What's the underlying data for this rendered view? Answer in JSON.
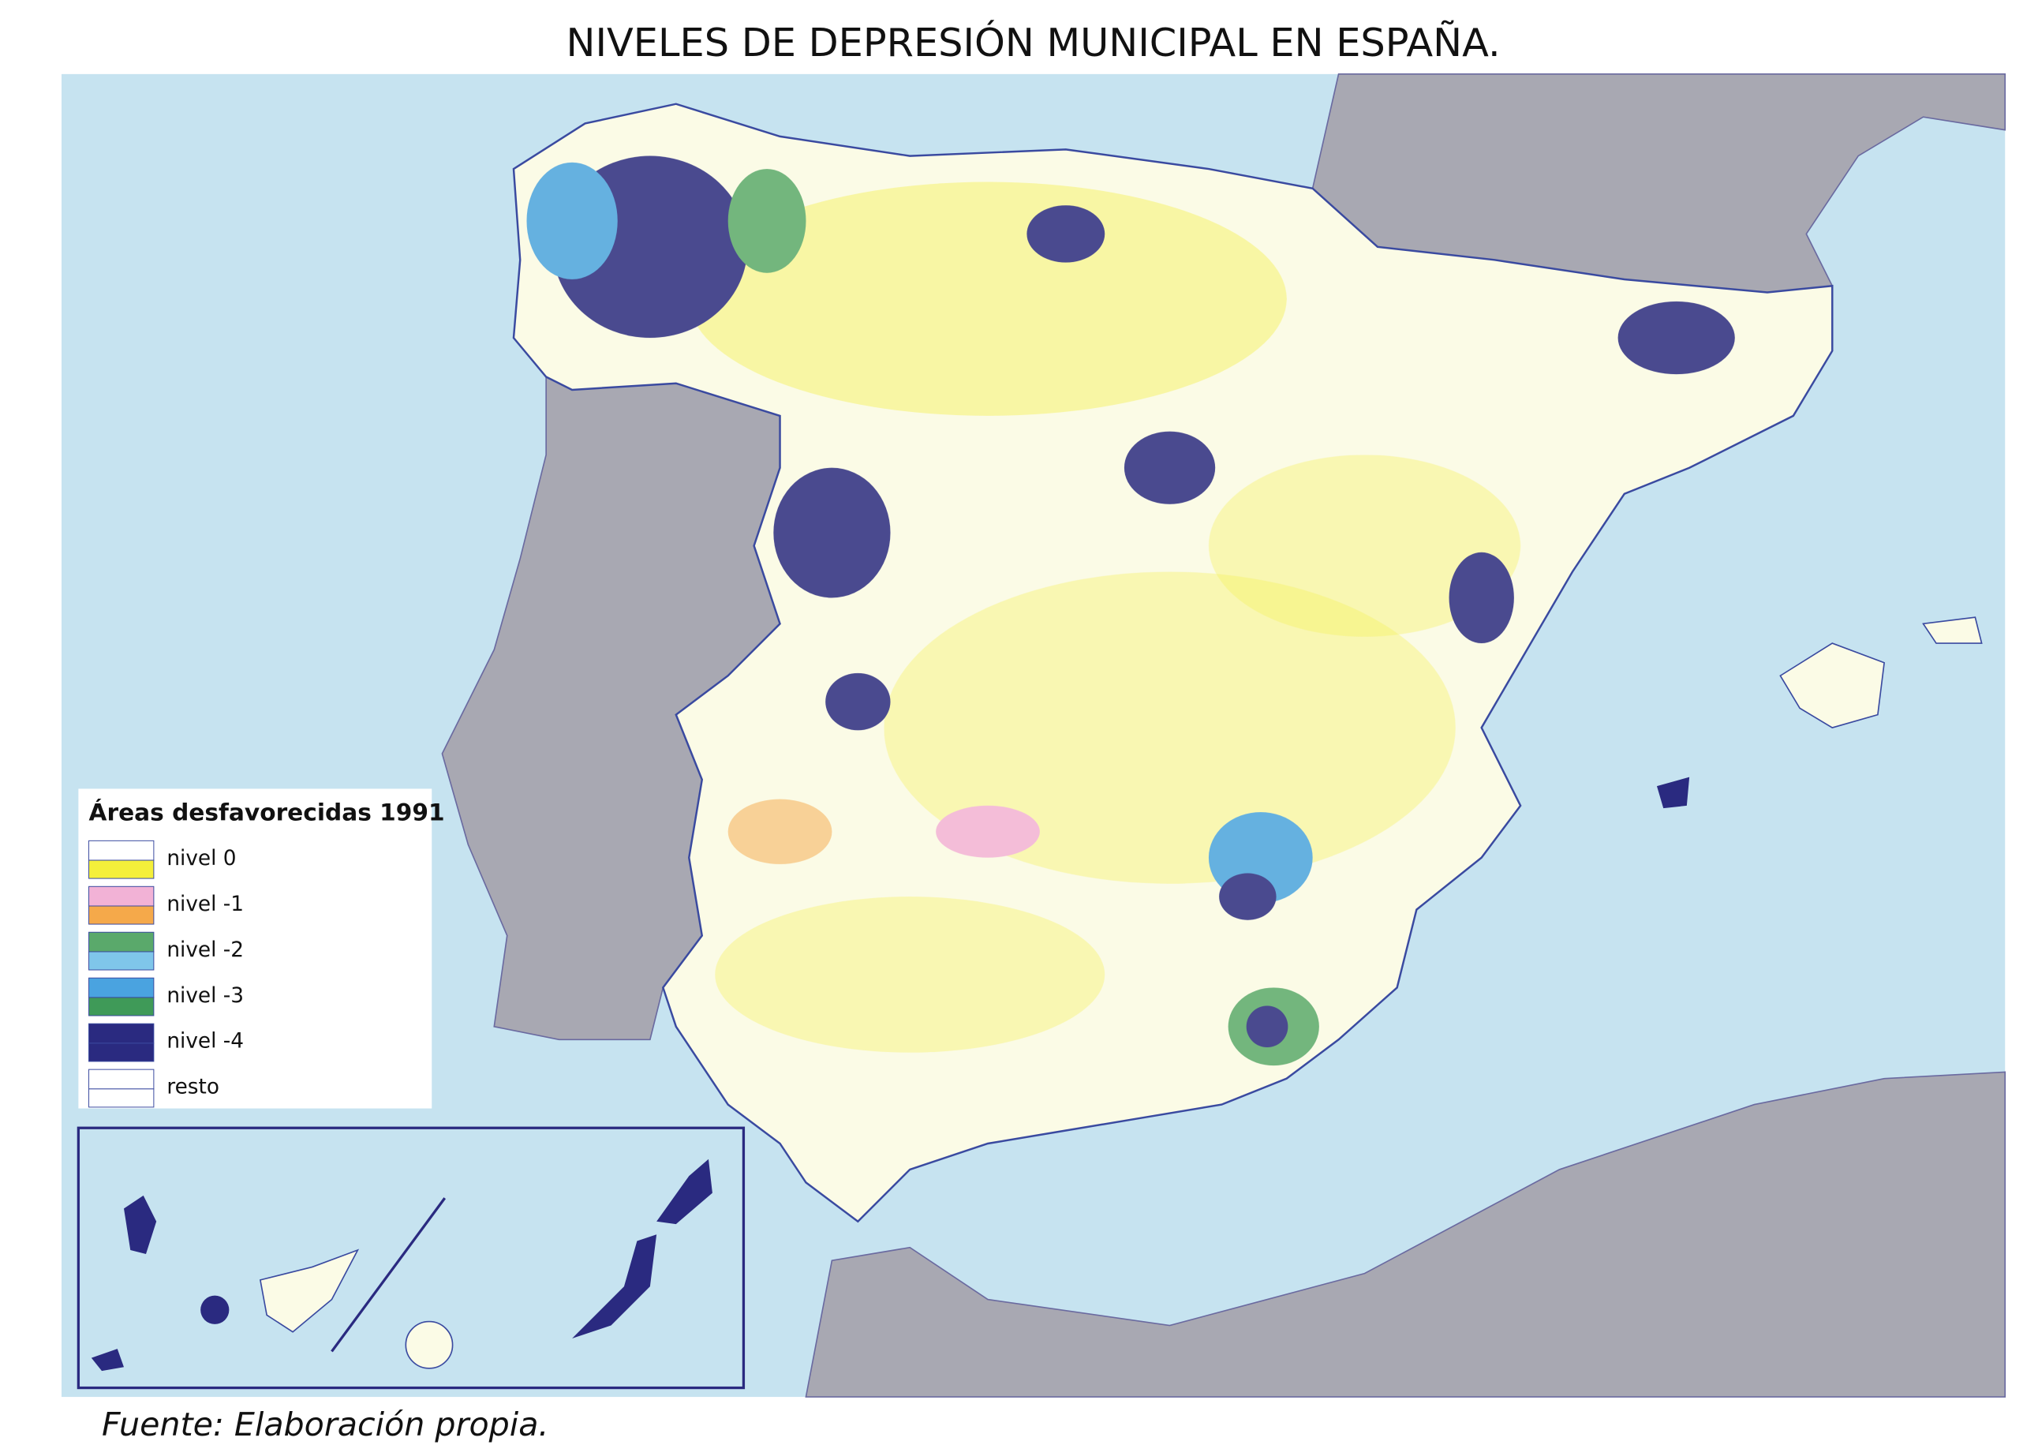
{
  "title": "NIVELES DE DEPRESIÓN MUNICIPAL EN ESPAÑA.",
  "legend": {
    "title": "Áreas desfavorecidas 1991",
    "items": [
      {
        "label": "nivel 0",
        "colors": [
          "#ffffff",
          "#f4ef3a"
        ]
      },
      {
        "label": "nivel -1",
        "colors": [
          "#f2b2d6",
          "#f5a94a"
        ]
      },
      {
        "label": "nivel -2",
        "colors": [
          "#5aa96b",
          "#7fc6ea"
        ]
      },
      {
        "label": "nivel -3",
        "colors": [
          "#4aa3e0",
          "#3f9a58"
        ]
      },
      {
        "label": "nivel -4",
        "colors": [
          "#2a2a80",
          "#2a2a80"
        ]
      },
      {
        "label": "resto",
        "colors": [
          "#ffffff",
          "#ffffff"
        ]
      }
    ]
  },
  "source": "Fuente: Elaboración propia."
}
